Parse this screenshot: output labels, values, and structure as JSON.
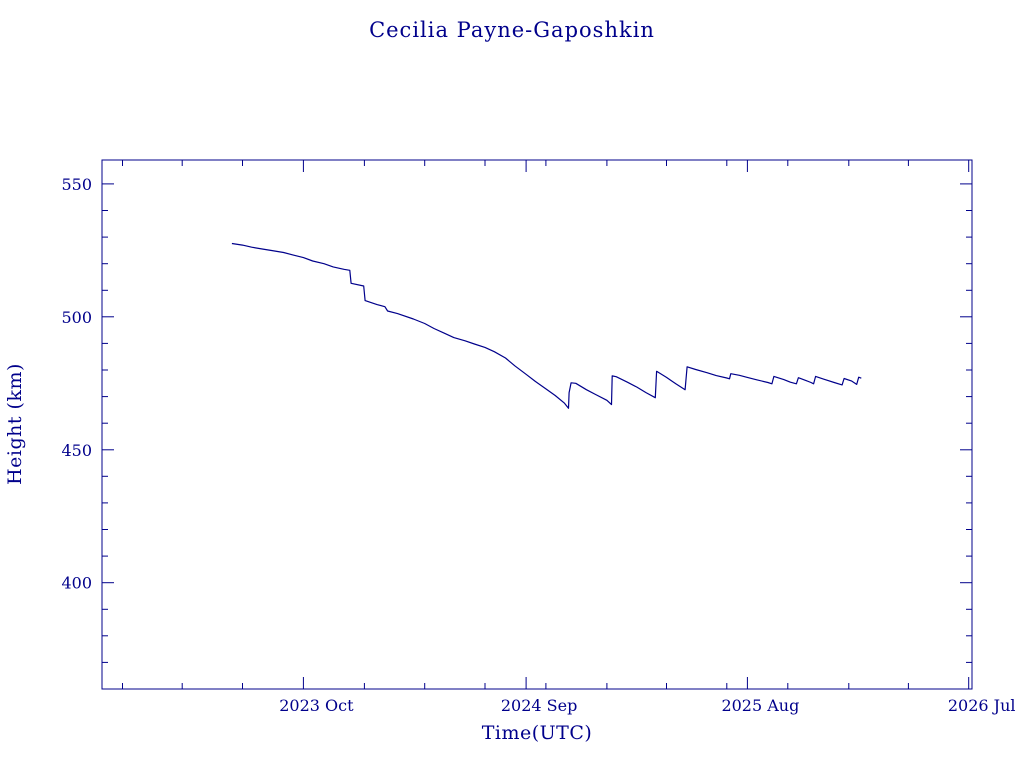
{
  "chart_data": {
    "type": "line",
    "title": "Cecilia Payne-Gaposhkin",
    "xlabel": "Time(UTC)",
    "ylabel": "Height (km)",
    "x_range": [
      "2022-12-01",
      "2026-07-06"
    ],
    "ylim": [
      360,
      559
    ],
    "y_ticks": [
      400,
      450,
      500,
      550
    ],
    "y_minor_step": 10,
    "x_ticks": [
      {
        "date": "2023-10-01",
        "label": "2023 Oct"
      },
      {
        "date": "2024-09-01",
        "label": "2024 Sep"
      },
      {
        "date": "2025-08-01",
        "label": "2025 Aug"
      },
      {
        "date": "2026-07-01",
        "label": "2026 Jul"
      }
    ],
    "x_minor_months": 3,
    "grid": false,
    "color": "#00008b",
    "series": [
      {
        "points": [
          [
            "2023-06-15",
            527.6
          ],
          [
            "2023-07-01",
            527.0
          ],
          [
            "2023-07-15",
            526.2
          ],
          [
            "2023-08-01",
            525.5
          ],
          [
            "2023-08-15",
            524.9
          ],
          [
            "2023-09-01",
            524.2
          ],
          [
            "2023-09-15",
            523.3
          ],
          [
            "2023-10-01",
            522.3
          ],
          [
            "2023-10-15",
            521.0
          ],
          [
            "2023-11-01",
            520.0
          ],
          [
            "2023-11-15",
            518.8
          ],
          [
            "2023-12-01",
            517.9
          ],
          [
            "2023-12-10",
            517.5
          ],
          [
            "2023-12-12",
            512.6
          ],
          [
            "2023-12-31",
            511.6
          ],
          [
            "2024-01-02",
            506.1
          ],
          [
            "2024-01-20",
            504.6
          ],
          [
            "2024-02-01",
            503.8
          ],
          [
            "2024-02-05",
            502.2
          ],
          [
            "2024-02-20",
            501.2
          ],
          [
            "2024-03-15",
            499.2
          ],
          [
            "2024-04-01",
            497.5
          ],
          [
            "2024-04-15",
            495.6
          ],
          [
            "2024-05-01",
            493.8
          ],
          [
            "2024-05-15",
            492.2
          ],
          [
            "2024-06-01",
            491.0
          ],
          [
            "2024-06-15",
            489.8
          ],
          [
            "2024-07-01",
            488.5
          ],
          [
            "2024-07-15",
            486.9
          ],
          [
            "2024-08-01",
            484.5
          ],
          [
            "2024-08-15",
            481.6
          ],
          [
            "2024-09-01",
            478.4
          ],
          [
            "2024-09-15",
            475.7
          ],
          [
            "2024-10-01",
            472.9
          ],
          [
            "2024-10-15",
            470.4
          ],
          [
            "2024-10-29",
            467.5
          ],
          [
            "2024-11-04",
            465.6
          ],
          [
            "2024-11-05",
            471.5
          ],
          [
            "2024-11-08",
            475.2
          ],
          [
            "2024-11-15",
            475.0
          ],
          [
            "2024-12-01",
            472.6
          ],
          [
            "2024-12-15",
            470.8
          ],
          [
            "2025-01-01",
            468.6
          ],
          [
            "2025-01-08",
            467.0
          ],
          [
            "2025-01-09",
            477.8
          ],
          [
            "2025-01-15",
            477.5
          ],
          [
            "2025-02-01",
            475.4
          ],
          [
            "2025-02-15",
            473.6
          ],
          [
            "2025-03-01",
            471.5
          ],
          [
            "2025-03-15",
            469.6
          ],
          [
            "2025-03-17",
            479.5
          ],
          [
            "2025-04-01",
            477.2
          ],
          [
            "2025-04-15",
            474.8
          ],
          [
            "2025-04-29",
            472.6
          ],
          [
            "2025-05-02",
            481.2
          ],
          [
            "2025-05-15",
            480.2
          ],
          [
            "2025-06-01",
            479.0
          ],
          [
            "2025-06-15",
            477.9
          ],
          [
            "2025-07-01",
            477.0
          ],
          [
            "2025-07-05",
            476.7
          ],
          [
            "2025-07-07",
            478.6
          ],
          [
            "2025-07-20",
            478.0
          ],
          [
            "2025-08-01",
            477.2
          ],
          [
            "2025-08-15",
            476.3
          ],
          [
            "2025-09-01",
            475.3
          ],
          [
            "2025-09-07",
            474.8
          ],
          [
            "2025-09-10",
            477.6
          ],
          [
            "2025-09-25",
            476.4
          ],
          [
            "2025-10-05",
            475.4
          ],
          [
            "2025-10-14",
            474.8
          ],
          [
            "2025-10-17",
            477.1
          ],
          [
            "2025-10-28",
            476.1
          ],
          [
            "2025-11-05",
            475.3
          ],
          [
            "2025-11-09",
            474.8
          ],
          [
            "2025-11-12",
            477.6
          ],
          [
            "2025-11-25",
            476.5
          ],
          [
            "2025-12-10",
            475.3
          ],
          [
            "2025-12-22",
            474.4
          ],
          [
            "2025-12-25",
            476.8
          ],
          [
            "2026-01-05",
            475.9
          ],
          [
            "2026-01-13",
            474.6
          ],
          [
            "2026-01-16",
            477.3
          ],
          [
            "2026-01-20",
            476.9
          ]
        ]
      }
    ]
  }
}
